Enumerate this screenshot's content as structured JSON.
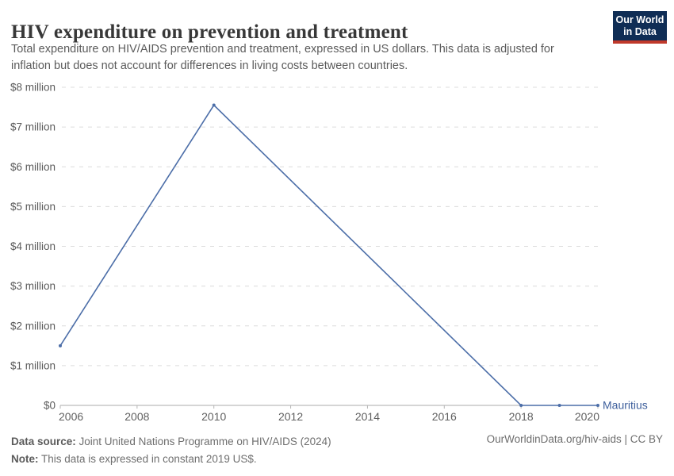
{
  "header": {
    "title": "HIV expenditure on prevention and treatment",
    "subtitle_line1": "Total expenditure on HIV/AIDS prevention and treatment, expressed in US dollars. This data is adjusted for",
    "subtitle_line2": "inflation but does not account for differences in living costs between countries.",
    "logo": {
      "line1": "Our World",
      "line2": "in Data",
      "bg_color": "#0F2D55",
      "accent_color": "#C0392B"
    }
  },
  "chart_data": {
    "type": "line",
    "title": "HIV expenditure on prevention and treatment",
    "xlabel": "",
    "ylabel": "",
    "xlim": [
      2006,
      2020
    ],
    "ylim": [
      0,
      8000000
    ],
    "x_ticks": [
      2006,
      2008,
      2010,
      2012,
      2014,
      2016,
      2018,
      2020
    ],
    "y_ticks": [
      {
        "value": 0,
        "label": "$0"
      },
      {
        "value": 1000000,
        "label": "$1 million"
      },
      {
        "value": 2000000,
        "label": "$2 million"
      },
      {
        "value": 3000000,
        "label": "$3 million"
      },
      {
        "value": 4000000,
        "label": "$4 million"
      },
      {
        "value": 5000000,
        "label": "$5 million"
      },
      {
        "value": 6000000,
        "label": "$6 million"
      },
      {
        "value": 7000000,
        "label": "$7 million"
      },
      {
        "value": 8000000,
        "label": "$8 million"
      }
    ],
    "grid": "horizontal-dashed",
    "legend_position": "end-of-line-label",
    "series": [
      {
        "name": "Mauritius",
        "color": "#4C6EA8",
        "label_color": "#3E5F9C",
        "points": [
          [
            2006,
            1500000
          ],
          [
            2010,
            7550000
          ],
          [
            2018,
            0
          ],
          [
            2019,
            0
          ],
          [
            2020,
            0
          ]
        ]
      }
    ]
  },
  "footer": {
    "datasource_label": "Data source:",
    "datasource_text": " Joint United Nations Programme on HIV/AIDS (2024)",
    "note_label": "Note:",
    "note_text": " This data is expressed in constant 2019 US$.",
    "credit": "OurWorldinData.org/hiv-aids | CC BY"
  }
}
